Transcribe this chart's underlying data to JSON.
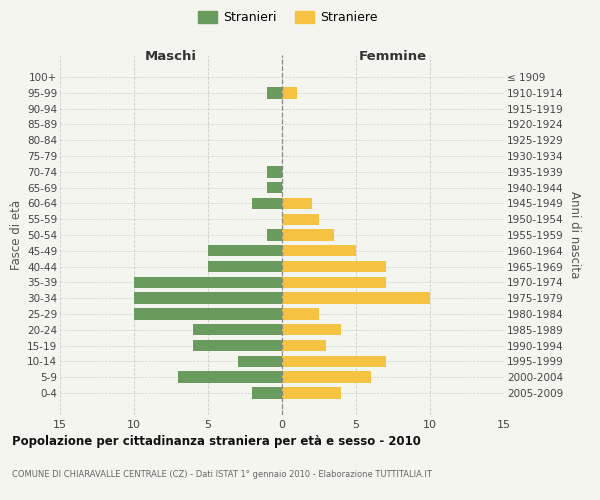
{
  "age_groups": [
    "100+",
    "95-99",
    "90-94",
    "85-89",
    "80-84",
    "75-79",
    "70-74",
    "65-69",
    "60-64",
    "55-59",
    "50-54",
    "45-49",
    "40-44",
    "35-39",
    "30-34",
    "25-29",
    "20-24",
    "15-19",
    "10-14",
    "5-9",
    "0-4"
  ],
  "birth_years": [
    "≤ 1909",
    "1910-1914",
    "1915-1919",
    "1920-1924",
    "1925-1929",
    "1930-1934",
    "1935-1939",
    "1940-1944",
    "1945-1949",
    "1950-1954",
    "1955-1959",
    "1960-1964",
    "1965-1969",
    "1970-1974",
    "1975-1979",
    "1980-1984",
    "1985-1989",
    "1990-1994",
    "1995-1999",
    "2000-2004",
    "2005-2009"
  ],
  "maschi": [
    0,
    1,
    0,
    0,
    0,
    0,
    1,
    1,
    2,
    0,
    1,
    5,
    5,
    10,
    10,
    10,
    6,
    6,
    3,
    7,
    2
  ],
  "femmine": [
    0,
    1,
    0,
    0,
    0,
    0,
    0,
    0,
    2,
    2.5,
    3.5,
    5,
    7,
    7,
    10,
    2.5,
    4,
    3,
    7,
    6,
    4
  ],
  "color_maschi": "#6a9b5e",
  "color_femmine": "#f5c242",
  "background_color": "#f5f5f0",
  "grid_color": "#cccccc",
  "title": "Popolazione per cittadinanza straniera per età e sesso - 2010",
  "subtitle": "COMUNE DI CHIARAVALLE CENTRALE (CZ) - Dati ISTAT 1° gennaio 2010 - Elaborazione TUTTITALIA.IT",
  "ylabel_left": "Fasce di età",
  "ylabel_right": "Anni di nascita",
  "xlabel_maschi": "Maschi",
  "xlabel_femmine": "Femmine",
  "legend_maschi": "Stranieri",
  "legend_femmine": "Straniere",
  "xlim": 15
}
